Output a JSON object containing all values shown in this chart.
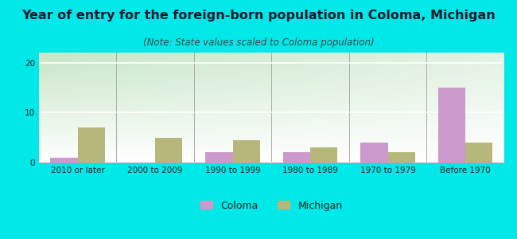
{
  "title": "Year of entry for the foreign-born population in Coloma, Michigan",
  "subtitle": "(Note: State values scaled to Coloma population)",
  "categories": [
    "2010 or later",
    "2000 to 2009",
    "1990 to 1999",
    "1980 to 1989",
    "1970 to 1979",
    "Before 1970"
  ],
  "coloma_values": [
    1,
    0,
    2,
    2,
    4,
    15
  ],
  "michigan_values": [
    7,
    5,
    4.5,
    3,
    2,
    4
  ],
  "coloma_color": "#cc99cc",
  "michigan_color": "#b5b87a",
  "background_color": "#00e8e8",
  "ylim": [
    0,
    22
  ],
  "yticks": [
    0,
    10,
    20
  ],
  "bar_width": 0.35,
  "title_fontsize": 11.5,
  "subtitle_fontsize": 8.5,
  "legend_fontsize": 9,
  "tick_fontsize": 7.5,
  "title_color": "#1a1a2e",
  "subtitle_color": "#444444",
  "tick_color": "#222222"
}
